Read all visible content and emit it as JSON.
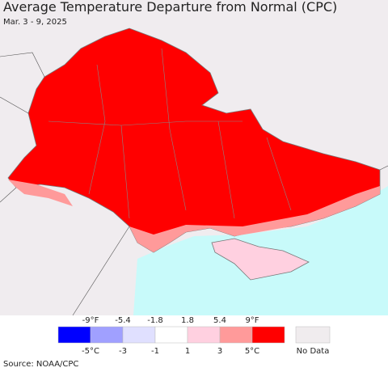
{
  "header": {
    "title": "Average Temperature Departure from Normal (CPC)",
    "subtitle": "Mar. 3 - 9, 2025"
  },
  "legend": {
    "colors": [
      "#0000ff",
      "#a0a0ff",
      "#e0e0ff",
      "#ffffff",
      "#ffd0e0",
      "#ff9a9a",
      "#ff0000"
    ],
    "f_labels": [
      "-9°F",
      "-5.4",
      "-1.8",
      "1.8",
      "5.4",
      "9°F"
    ],
    "c_labels": [
      "-5°C",
      "-3",
      "-1",
      "1",
      "3",
      "5°C"
    ],
    "no_data": "No Data",
    "no_data_color": "#f0ecee"
  },
  "footer": {
    "source": "Source: NOAA/CPC"
  }
}
